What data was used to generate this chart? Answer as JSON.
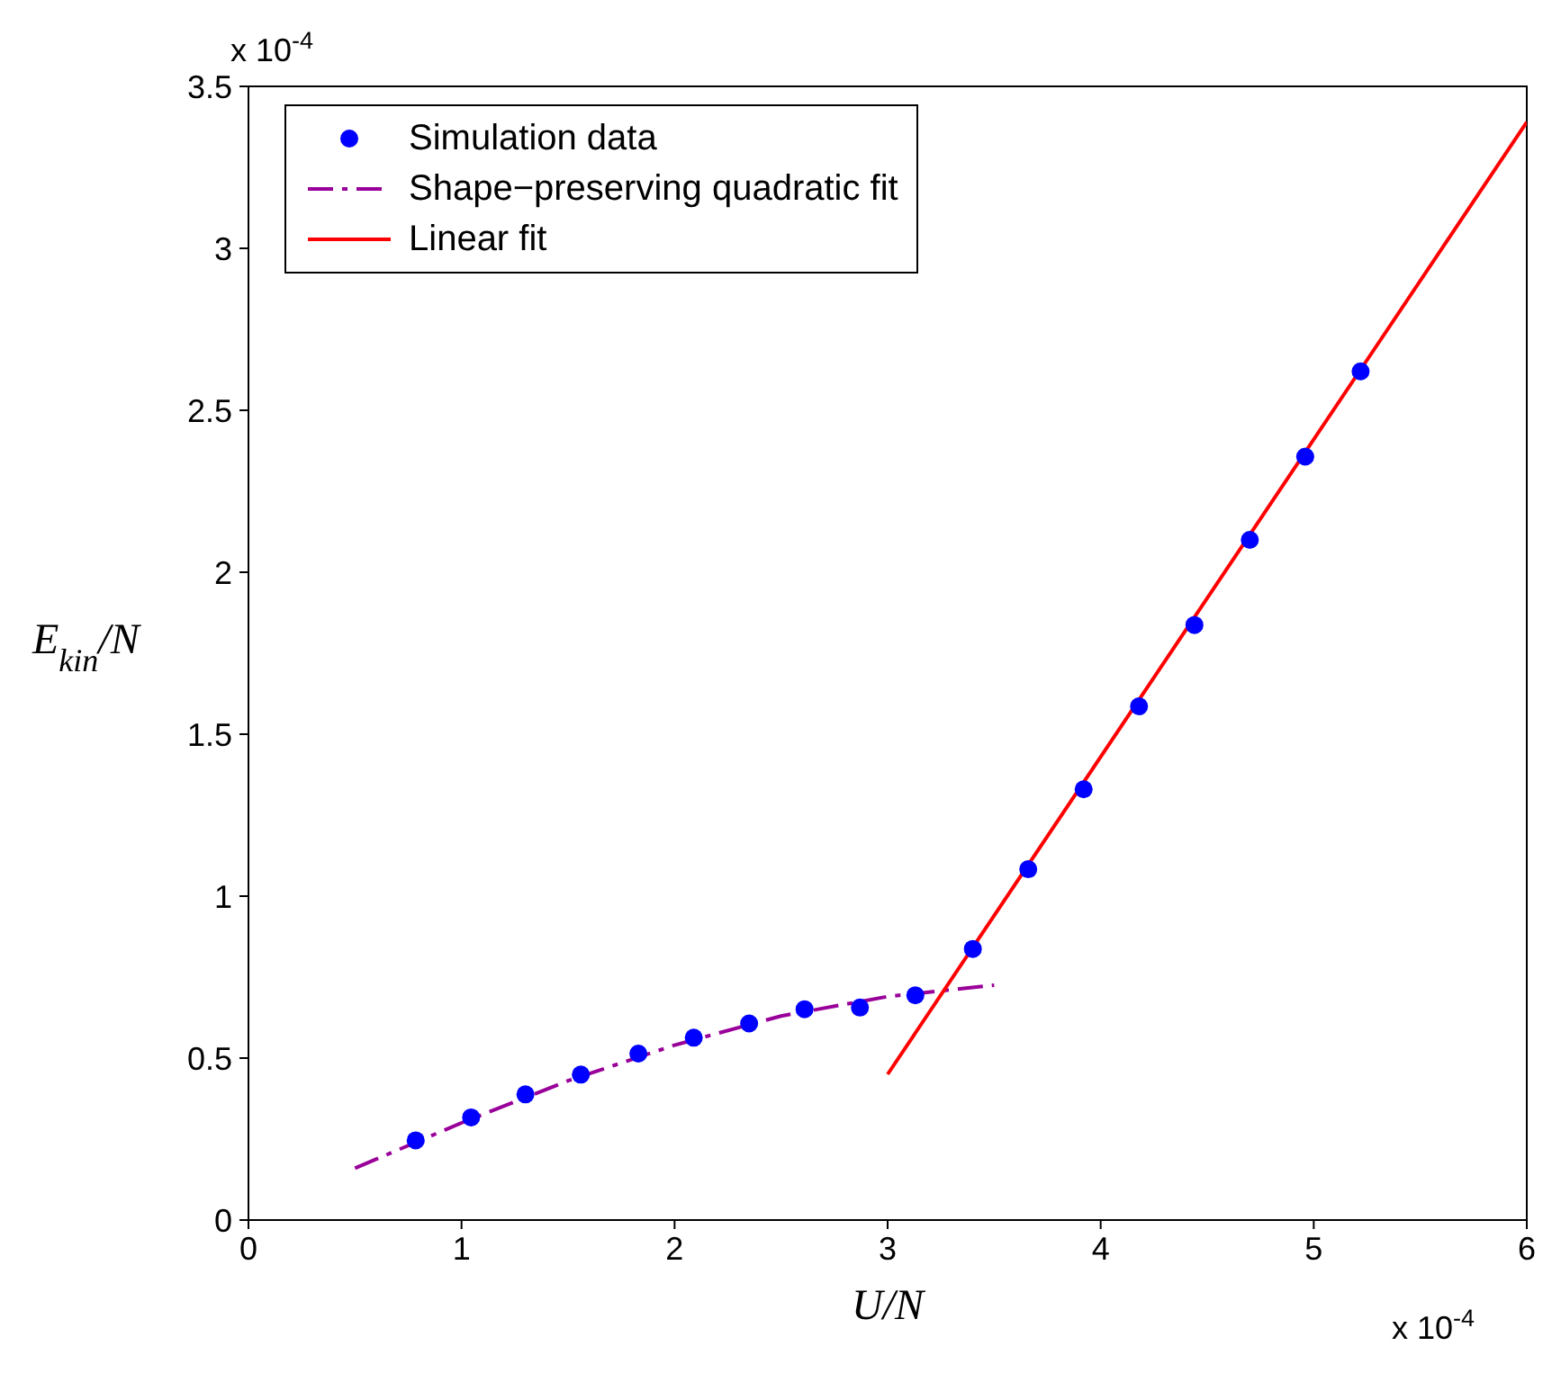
{
  "chart_data": {
    "type": "scatter",
    "xlabel": "U/N",
    "ylabel": "E$_{kin}$/N",
    "xlim": [
      0,
      6
    ],
    "ylim": [
      0,
      3.5
    ],
    "xticks": [
      0,
      1,
      2,
      3,
      4,
      5,
      6
    ],
    "yticks": [
      0,
      0.5,
      1,
      1.5,
      2,
      2.5,
      3,
      3.5
    ],
    "legend": "top left",
    "grid": false,
    "annotations": [
      "x 10$^{-4}$",
      "x 10$^{-4}$"
    ],
    "series": [
      {
        "name": "Simulation data",
        "marker": "circle",
        "color": "#0000ff",
        "x": [
          0.785,
          1.045,
          1.3,
          1.56,
          1.83,
          2.09,
          2.35,
          2.61,
          2.87,
          3.13,
          3.4,
          3.66,
          3.92,
          4.18,
          4.44,
          4.7,
          4.96,
          5.22
        ],
        "values": [
          0.246,
          0.317,
          0.388,
          0.449,
          0.514,
          0.563,
          0.607,
          0.651,
          0.656,
          0.694,
          0.837,
          1.083,
          1.33,
          1.586,
          1.837,
          2.1,
          2.357,
          2.62
        ]
      },
      {
        "name": "Shape−preserving quadratic fit",
        "type": "line",
        "line_style": "dashed",
        "color": "#990099",
        "x": [
          0.5,
          1,
          1.5,
          2,
          2.5,
          3,
          3.5
        ],
        "values": [
          0.16,
          0.3,
          0.43,
          0.54,
          0.63,
          0.69,
          0.725
        ]
      },
      {
        "name": "Linear fit",
        "type": "line",
        "line_style": "solid",
        "color": "#ff0000",
        "x": [
          3,
          6
        ],
        "values": [
          0.45,
          3.39
        ]
      }
    ]
  }
}
